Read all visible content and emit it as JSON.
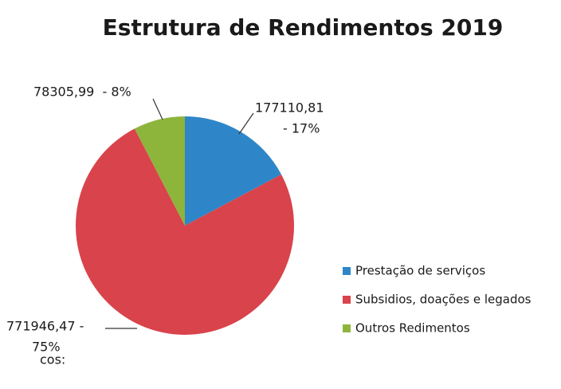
{
  "chart_data": {
    "type": "pie",
    "title": "Estrutura de Rendimentos 2019",
    "categories": [
      "Prestação de serviços",
      "Subsidios, doações e legados",
      "Outros Redimentos"
    ],
    "values": [
      177110.81,
      771946.47,
      78305.99
    ],
    "value_labels": [
      [
        "177110,81",
        "- 17%"
      ],
      [
        "771946,47 -",
        "75%"
      ],
      [
        "78305,99  - 8%"
      ]
    ],
    "colors": [
      "#2e86c8",
      "#d9434b",
      "#8db53c"
    ],
    "legend": "right",
    "annotations": [
      "cos:"
    ]
  }
}
